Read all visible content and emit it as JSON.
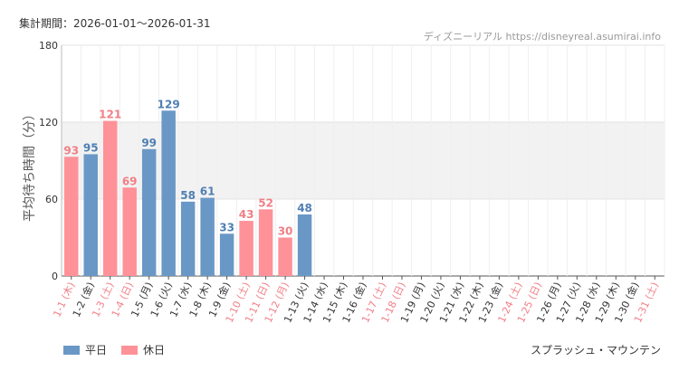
{
  "period_label": "集計期間：2026-01-01～2026-01-31",
  "site_credit": "ディズニーリアル https://disneyreal.asumirai.info",
  "attraction_name": "スプラッシュ・マウンテン",
  "legend": {
    "weekday_label": "平日",
    "holiday_label": "休日"
  },
  "colors": {
    "weekday": "#6a98c6",
    "holiday": "#ff9199",
    "weekday_label": "#4f7fb3",
    "holiday_label": "#f07f86",
    "band": "#f2f2f2",
    "grid": "#e3e3e3"
  },
  "chart_data": {
    "type": "bar",
    "title": "",
    "xlabel": "",
    "ylabel": "平均待ち時間（分）",
    "ylim": [
      0,
      180
    ],
    "yticks": [
      0,
      60,
      120,
      180
    ],
    "shaded_band": [
      60,
      120
    ],
    "grid": true,
    "legend_position": "bottom-left",
    "categories": [
      "1-1 (木)",
      "1-2 (金)",
      "1-3 (土)",
      "1-4 (日)",
      "1-5 (月)",
      "1-6 (火)",
      "1-7 (水)",
      "1-8 (木)",
      "1-9 (金)",
      "1-10 (土)",
      "1-11 (日)",
      "1-12 (月)",
      "1-13 (火)",
      "1-14 (水)",
      "1-15 (木)",
      "1-16 (金)",
      "1-17 (土)",
      "1-18 (日)",
      "1-19 (月)",
      "1-20 (火)",
      "1-21 (水)",
      "1-22 (木)",
      "1-23 (金)",
      "1-24 (土)",
      "1-25 (日)",
      "1-26 (月)",
      "1-27 (火)",
      "1-28 (水)",
      "1-29 (木)",
      "1-30 (金)",
      "1-31 (土)"
    ],
    "values": [
      93,
      95,
      121,
      69,
      99,
      129,
      58,
      61,
      33,
      43,
      52,
      30,
      48,
      null,
      null,
      null,
      null,
      null,
      null,
      null,
      null,
      null,
      null,
      null,
      null,
      null,
      null,
      null,
      null,
      null,
      null
    ],
    "day_type": [
      "holiday",
      "weekday",
      "holiday",
      "holiday",
      "weekday",
      "weekday",
      "weekday",
      "weekday",
      "weekday",
      "holiday",
      "holiday",
      "holiday",
      "weekday",
      "weekday",
      "weekday",
      "weekday",
      "holiday",
      "holiday",
      "weekday",
      "weekday",
      "weekday",
      "weekday",
      "weekday",
      "holiday",
      "holiday",
      "weekday",
      "weekday",
      "weekday",
      "weekday",
      "weekday",
      "holiday"
    ]
  }
}
